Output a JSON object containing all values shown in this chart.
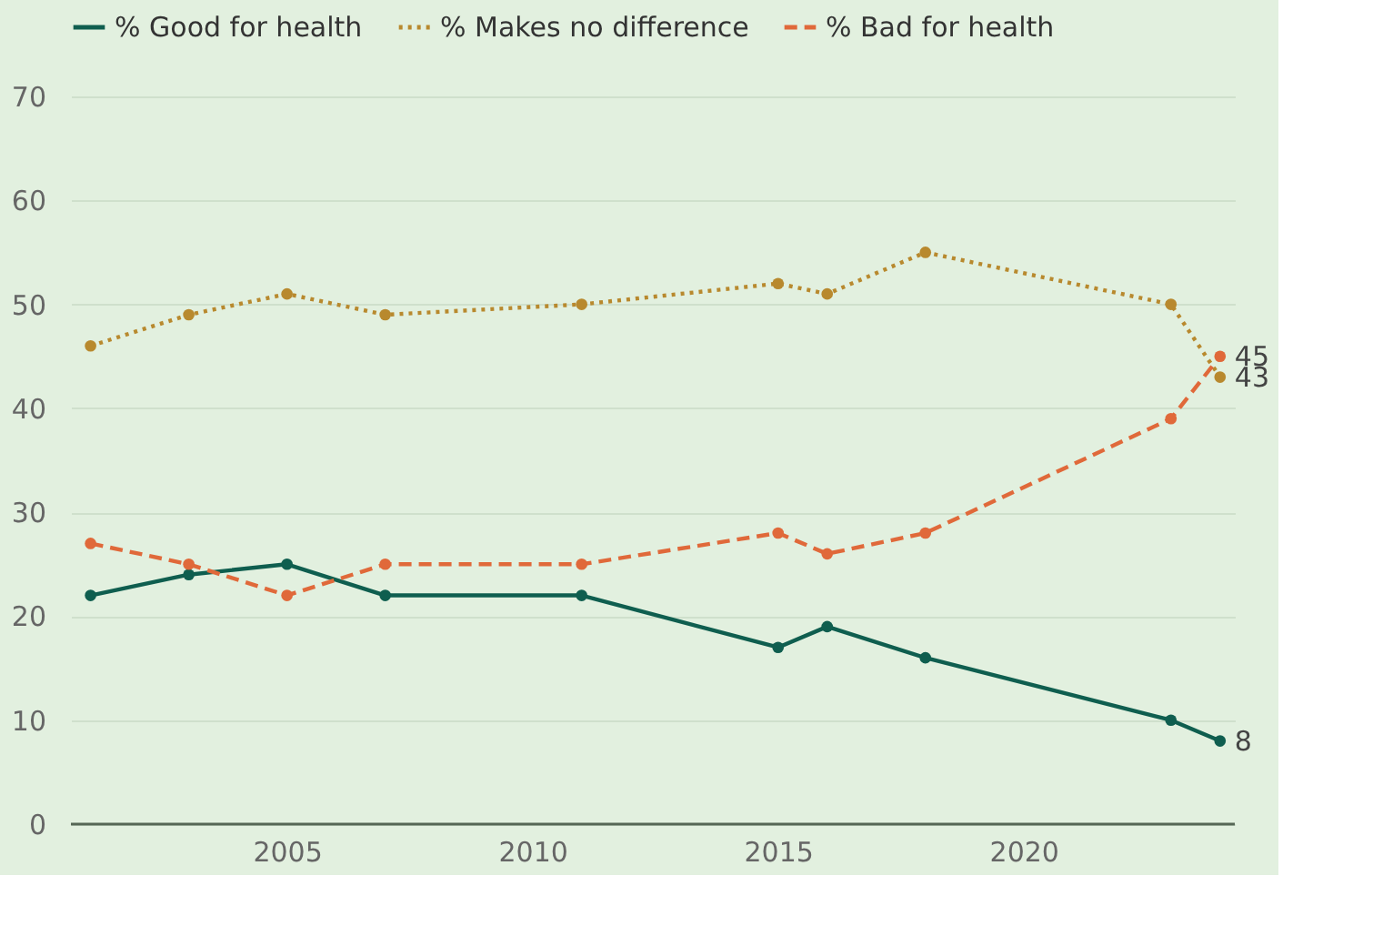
{
  "chart_data": {
    "type": "line",
    "x": [
      2001,
      2003,
      2005,
      2007,
      2011,
      2015,
      2016,
      2018,
      2023,
      2024
    ],
    "series": [
      {
        "name": "% Good for health",
        "color": "#0f5e4f",
        "line_style": "solid",
        "values": [
          22,
          24,
          25,
          22,
          22,
          17,
          19,
          16,
          10,
          8
        ],
        "value_labels": [
          null,
          null,
          null,
          null,
          null,
          null,
          null,
          null,
          null,
          "8"
        ]
      },
      {
        "name": "% Makes no difference",
        "color": "#b8892e",
        "line_style": "dotted",
        "values": [
          46,
          49,
          51,
          49,
          50,
          52,
          51,
          55,
          50,
          43
        ],
        "value_labels": [
          null,
          null,
          null,
          null,
          null,
          null,
          null,
          null,
          null,
          "43"
        ]
      },
      {
        "name": "% Bad for health",
        "color": "#e0693a",
        "line_style": "dashed",
        "values": [
          27,
          25,
          22,
          25,
          25,
          28,
          26,
          28,
          39,
          45
        ],
        "value_labels": [
          null,
          null,
          null,
          null,
          null,
          null,
          null,
          null,
          null,
          "45"
        ]
      }
    ],
    "xlim": [
      2000.6,
      2024.3
    ],
    "xticks": [
      2005,
      2010,
      2015,
      2020
    ],
    "ylim": [
      0,
      70
    ],
    "yticks": [
      0,
      10,
      20,
      30,
      40,
      50,
      60,
      70
    ],
    "grid": "y",
    "legend": "top left",
    "marker": "circle"
  }
}
